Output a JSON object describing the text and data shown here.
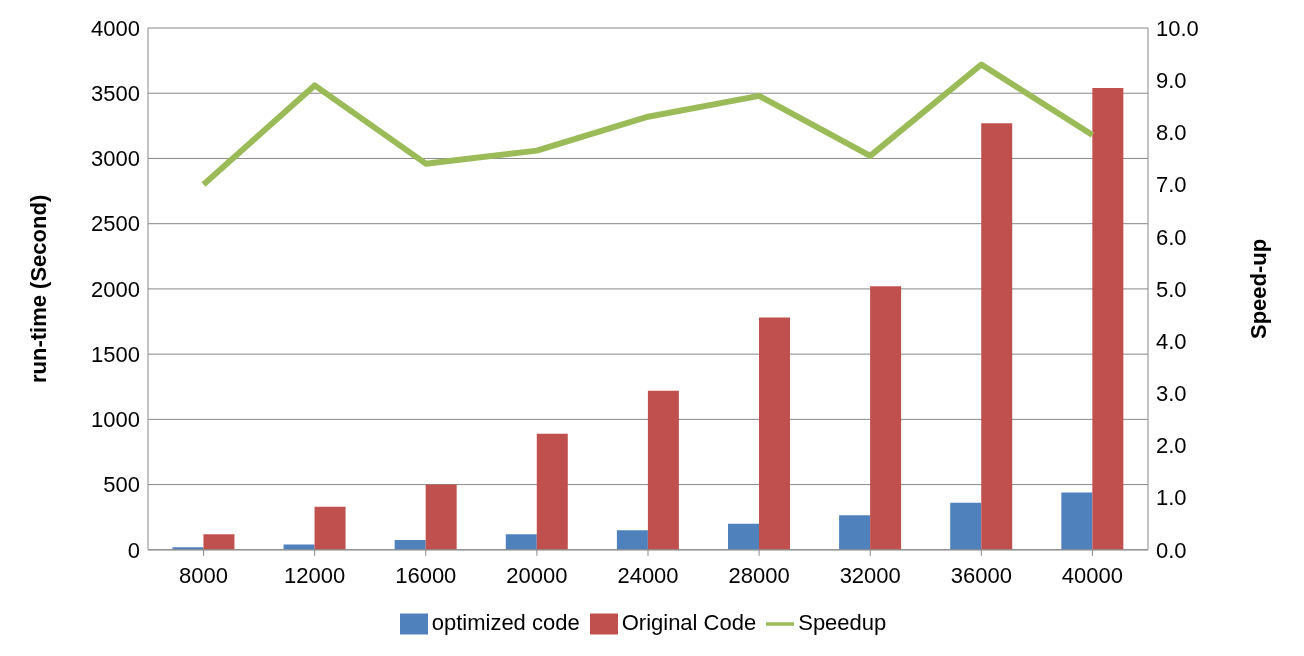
{
  "chart_data": {
    "type": "bar",
    "ylabel": "run-time (Second)",
    "y2label": "Speed-up",
    "categories": [
      "8000",
      "12000",
      "16000",
      "20000",
      "24000",
      "28000",
      "32000",
      "36000",
      "40000"
    ],
    "series": [
      {
        "name": "optimized code",
        "color": "#4f81bd",
        "values": [
          20,
          40,
          75,
          120,
          150,
          200,
          265,
          360,
          440
        ]
      },
      {
        "name": "Original Code",
        "color": "#c0504d",
        "values": [
          120,
          330,
          500,
          890,
          1220,
          1780,
          2020,
          3270,
          3540
        ]
      },
      {
        "name": "Speedup",
        "type": "line",
        "axis": "y2",
        "color": "#9bbb59",
        "values": [
          7.0,
          8.9,
          7.4,
          7.65,
          8.3,
          8.7,
          7.55,
          9.3,
          7.95
        ]
      }
    ],
    "ylim": [
      0,
      4000
    ],
    "yticks": [
      0,
      500,
      1000,
      1500,
      2000,
      2500,
      3000,
      3500,
      4000
    ],
    "y2lim": [
      0,
      10
    ],
    "y2ticks": [
      {
        "value": 0,
        "label": "0.0"
      },
      {
        "value": 1,
        "label": "1.0"
      },
      {
        "value": 2,
        "label": "2.0"
      },
      {
        "value": 3,
        "label": "3.0"
      },
      {
        "value": 4,
        "label": "4.0"
      },
      {
        "value": 5,
        "label": "5.0"
      },
      {
        "value": 6,
        "label": "6.0"
      },
      {
        "value": 7,
        "label": "7.0"
      },
      {
        "value": 8,
        "label": "8.0"
      },
      {
        "value": 9,
        "label": "9.0"
      },
      {
        "value": 10,
        "label": "10.0"
      }
    ],
    "grid": "y",
    "legend": "bottom",
    "marker": "none"
  }
}
